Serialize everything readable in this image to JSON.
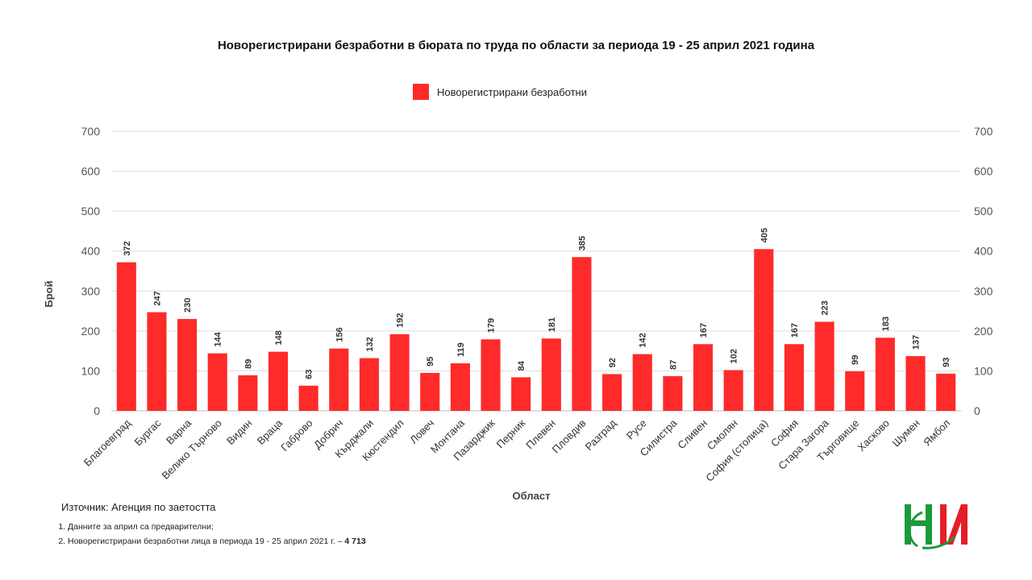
{
  "chart_data": {
    "type": "bar",
    "title": "Новорегистрирани безработни в бюрата по труда по области за периода 19 - 25 април 2021 година",
    "xlabel": "Област",
    "ylabel": "Брой",
    "ylim": [
      0,
      700
    ],
    "yticks": [
      0,
      100,
      200,
      300,
      400,
      500,
      600,
      700
    ],
    "grid": true,
    "legend_position": "top-center",
    "bar_color": "#ff2a2a",
    "categories": [
      "Благоевград",
      "Бургас",
      "Варна",
      "Велико Търново",
      "Видин",
      "Враца",
      "Габрово",
      "Добрич",
      "Кърджали",
      "Кюстендил",
      "Ловеч",
      "Монтана",
      "Пазарджик",
      "Перник",
      "Плевен",
      "Пловдив",
      "Разград",
      "Русе",
      "Силистра",
      "Сливен",
      "Смолян",
      "София (столица)",
      "София",
      "Стара Загора",
      "Търговище",
      "Хасково",
      "Шумен",
      "Ямбол"
    ],
    "series": [
      {
        "name": "Новорегистрирани безработни",
        "values": [
          372,
          247,
          230,
          144,
          89,
          148,
          63,
          156,
          132,
          192,
          95,
          119,
          179,
          84,
          181,
          385,
          92,
          142,
          87,
          167,
          102,
          405,
          167,
          223,
          99,
          183,
          137,
          93
        ]
      }
    ]
  },
  "footer": {
    "source": "Източник: Агенция по заетостта",
    "note1": "Данните за април са предварителни;",
    "note2_text": "Новорегистрирани безработни лица в периода 19 - 25 април 2021 г. – ",
    "note2_value": "4 713"
  },
  "logo": {
    "icon": "nsi-logo-icon",
    "colors": [
      "#1a9a3a",
      "#e41e26"
    ]
  }
}
